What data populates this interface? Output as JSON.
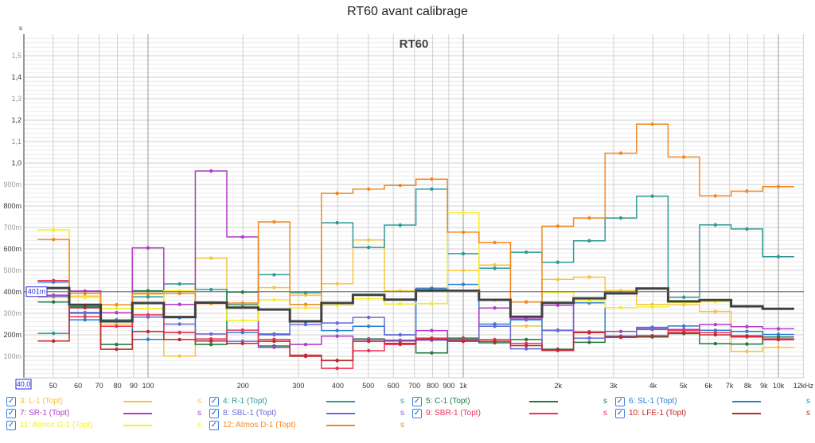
{
  "title": "RT60 avant calibrage",
  "chart_data": {
    "type": "line",
    "step": true,
    "title": "RT60 avant calibrage",
    "inner_label": "RT60",
    "ylabel": "s",
    "xlabel": "kHz",
    "xscale": "log",
    "xlim": [
      40,
      12000
    ],
    "ylim": [
      0,
      1.6
    ],
    "cursor_value": 0.401,
    "cursor_label": "401m",
    "x_cursor_label": "40,0",
    "x_ticks": [
      {
        "v": 50,
        "l": "50"
      },
      {
        "v": 60,
        "l": "60"
      },
      {
        "v": 70,
        "l": "70"
      },
      {
        "v": 80,
        "l": "80"
      },
      {
        "v": 90,
        "l": "90"
      },
      {
        "v": 100,
        "l": "100"
      },
      {
        "v": 200,
        "l": "200"
      },
      {
        "v": 300,
        "l": "300"
      },
      {
        "v": 400,
        "l": "400"
      },
      {
        "v": 500,
        "l": "500"
      },
      {
        "v": 600,
        "l": "600"
      },
      {
        "v": 700,
        "l": "700"
      },
      {
        "v": 800,
        "l": "800"
      },
      {
        "v": 900,
        "l": "900"
      },
      {
        "v": 1000,
        "l": "1k"
      },
      {
        "v": 2000,
        "l": "2k"
      },
      {
        "v": 3000,
        "l": "3k"
      },
      {
        "v": 4000,
        "l": "4k"
      },
      {
        "v": 5000,
        "l": "5k"
      },
      {
        "v": 6000,
        "l": "6k"
      },
      {
        "v": 7000,
        "l": "7k"
      },
      {
        "v": 8000,
        "l": "8k"
      },
      {
        "v": 9000,
        "l": "9k"
      },
      {
        "v": 10000,
        "l": "10k"
      },
      {
        "v": 12000,
        "l": "12kHz"
      }
    ],
    "y_ticks": [
      {
        "v": 0.1,
        "l": "100m"
      },
      {
        "v": 0.2,
        "l": "200m"
      },
      {
        "v": 0.3,
        "l": "300m"
      },
      {
        "v": 0.4,
        "l": "400m"
      },
      {
        "v": 0.5,
        "l": "500m"
      },
      {
        "v": 0.6,
        "l": "600m"
      },
      {
        "v": 0.7,
        "l": "700m"
      },
      {
        "v": 0.8,
        "l": "800m"
      },
      {
        "v": 0.9,
        "l": "900m"
      },
      {
        "v": 1.0,
        "l": "1,0"
      },
      {
        "v": 1.1,
        "l": "1,1"
      },
      {
        "v": 1.2,
        "l": "1,2"
      },
      {
        "v": 1.3,
        "l": "1,3"
      },
      {
        "v": 1.4,
        "l": "1,4"
      },
      {
        "v": 1.5,
        "l": "1,5"
      }
    ],
    "bands": [
      50,
      63,
      80,
      100,
      125,
      160,
      200,
      250,
      315,
      400,
      500,
      630,
      800,
      1000,
      1250,
      1600,
      2000,
      2500,
      3150,
      4000,
      5000,
      6300,
      8000,
      10000
    ],
    "series": [
      {
        "name": "3: L-1 (Topt)",
        "unit": "s",
        "color": "#f5c542",
        "values": [
          0.375,
          0.38,
          0.25,
          0.39,
          0.101,
          0.557,
          0.342,
          0.42,
          0.385,
          0.438,
          0.642,
          0.405,
          0.41,
          0.5,
          0.525,
          0.241,
          0.458,
          0.469,
          0.406,
          0.342,
          0.34,
          0.309,
          0.123,
          0.142
        ]
      },
      {
        "name": "4: R-1 (Topt)",
        "unit": "s",
        "color": "#2e9a95",
        "values": [
          0.207,
          0.3,
          0.27,
          0.377,
          0.437,
          0.411,
          0.34,
          0.48,
          0.396,
          0.722,
          0.607,
          0.711,
          0.879,
          0.578,
          0.51,
          0.585,
          0.538,
          0.638,
          0.744,
          0.846,
          0.375,
          0.712,
          0.693,
          0.564
        ]
      },
      {
        "name": "5: C-1 (Topt)",
        "unit": "s",
        "color": "#1f7a45",
        "values": [
          0.353,
          0.33,
          0.155,
          0.405,
          0.211,
          0.155,
          0.399,
          0.148,
          0.105,
          0.081,
          0.181,
          0.171,
          0.116,
          0.185,
          0.163,
          0.178,
          0.133,
          0.165,
          0.19,
          0.19,
          0.206,
          0.159,
          0.157,
          0.19
        ]
      },
      {
        "name": "6: SL-1 (Topt)",
        "unit": "s",
        "color": "#2a7fd4",
        "values": [
          0.446,
          0.27,
          0.265,
          0.179,
          0.28,
          0.18,
          0.211,
          0.204,
          0.26,
          0.22,
          0.24,
          0.2,
          0.417,
          0.435,
          0.25,
          0.27,
          0.22,
          0.349,
          0.194,
          0.235,
          0.241,
          0.221,
          0.216,
          0.202
        ]
      },
      {
        "name": "7: SR-1 (Topt)",
        "unit": "s",
        "color": "#b03cc8",
        "values": [
          0.385,
          0.404,
          0.303,
          0.605,
          0.342,
          0.963,
          0.656,
          0.142,
          0.155,
          0.194,
          0.178,
          0.175,
          0.22,
          0.174,
          0.325,
          0.274,
          0.338,
          0.21,
          0.216,
          0.228,
          0.225,
          0.248,
          0.238,
          0.228
        ]
      },
      {
        "name": "8: SBL-1 (Topt)",
        "unit": "s",
        "color": "#6a6ad8",
        "values": [
          0.38,
          0.304,
          0.265,
          0.283,
          0.25,
          0.204,
          0.17,
          0.2,
          0.248,
          0.255,
          0.281,
          0.2,
          0.175,
          0.174,
          0.24,
          0.135,
          0.222,
          0.185,
          0.19,
          0.225,
          0.22,
          0.21,
          0.194,
          0.181
        ]
      },
      {
        "name": "9: SBR-1 (Topt)",
        "unit": "s",
        "color": "#f0305a",
        "values": [
          0.453,
          0.285,
          0.24,
          0.293,
          0.211,
          0.181,
          0.222,
          0.179,
          0.105,
          0.044,
          0.126,
          0.155,
          0.185,
          0.179,
          0.178,
          0.16,
          0.127,
          0.214,
          0.188,
          0.195,
          0.221,
          0.21,
          0.19,
          0.177
        ]
      },
      {
        "name": "10: LFE-1 (Topt)",
        "unit": "s",
        "color": "#c0282a",
        "values": [
          0.171,
          0.326,
          0.133,
          0.215,
          0.178,
          0.171,
          0.16,
          0.17,
          0.1,
          0.08,
          0.17,
          0.16,
          0.18,
          0.17,
          0.17,
          0.15,
          0.13,
          0.21,
          0.19,
          0.195,
          0.21,
          0.2,
          0.195,
          0.18
        ]
      },
      {
        "name": "11: Atmos G-1 (Topt)",
        "unit": "s",
        "color": "#f5f020",
        "values": [
          0.689,
          0.374,
          0.323,
          0.323,
          0.405,
          0.35,
          0.267,
          0.363,
          0.326,
          0.337,
          0.368,
          0.344,
          0.346,
          0.768,
          0.36,
          0.353,
          0.397,
          0.358,
          0.327,
          0.33,
          0.35,
          0.354,
          0.333,
          0.321
        ]
      },
      {
        "name": "12: Atmos D-1 (Topt)",
        "unit": "s",
        "color": "#f08a20",
        "values": [
          0.644,
          0.393,
          0.34,
          0.393,
          0.393,
          0.346,
          0.348,
          0.726,
          0.342,
          0.859,
          0.879,
          0.896,
          0.925,
          0.678,
          0.63,
          0.353,
          0.706,
          0.744,
          1.046,
          1.181,
          1.028,
          0.847,
          0.869,
          0.89
        ]
      }
    ],
    "average": {
      "color": "#404040",
      "values": [
        0.418,
        0.34,
        0.263,
        0.348,
        0.283,
        0.35,
        0.327,
        0.318,
        0.263,
        0.348,
        0.386,
        0.364,
        0.407,
        0.405,
        0.363,
        0.284,
        0.349,
        0.37,
        0.393,
        0.416,
        0.356,
        0.362,
        0.333,
        0.321
      ]
    }
  }
}
